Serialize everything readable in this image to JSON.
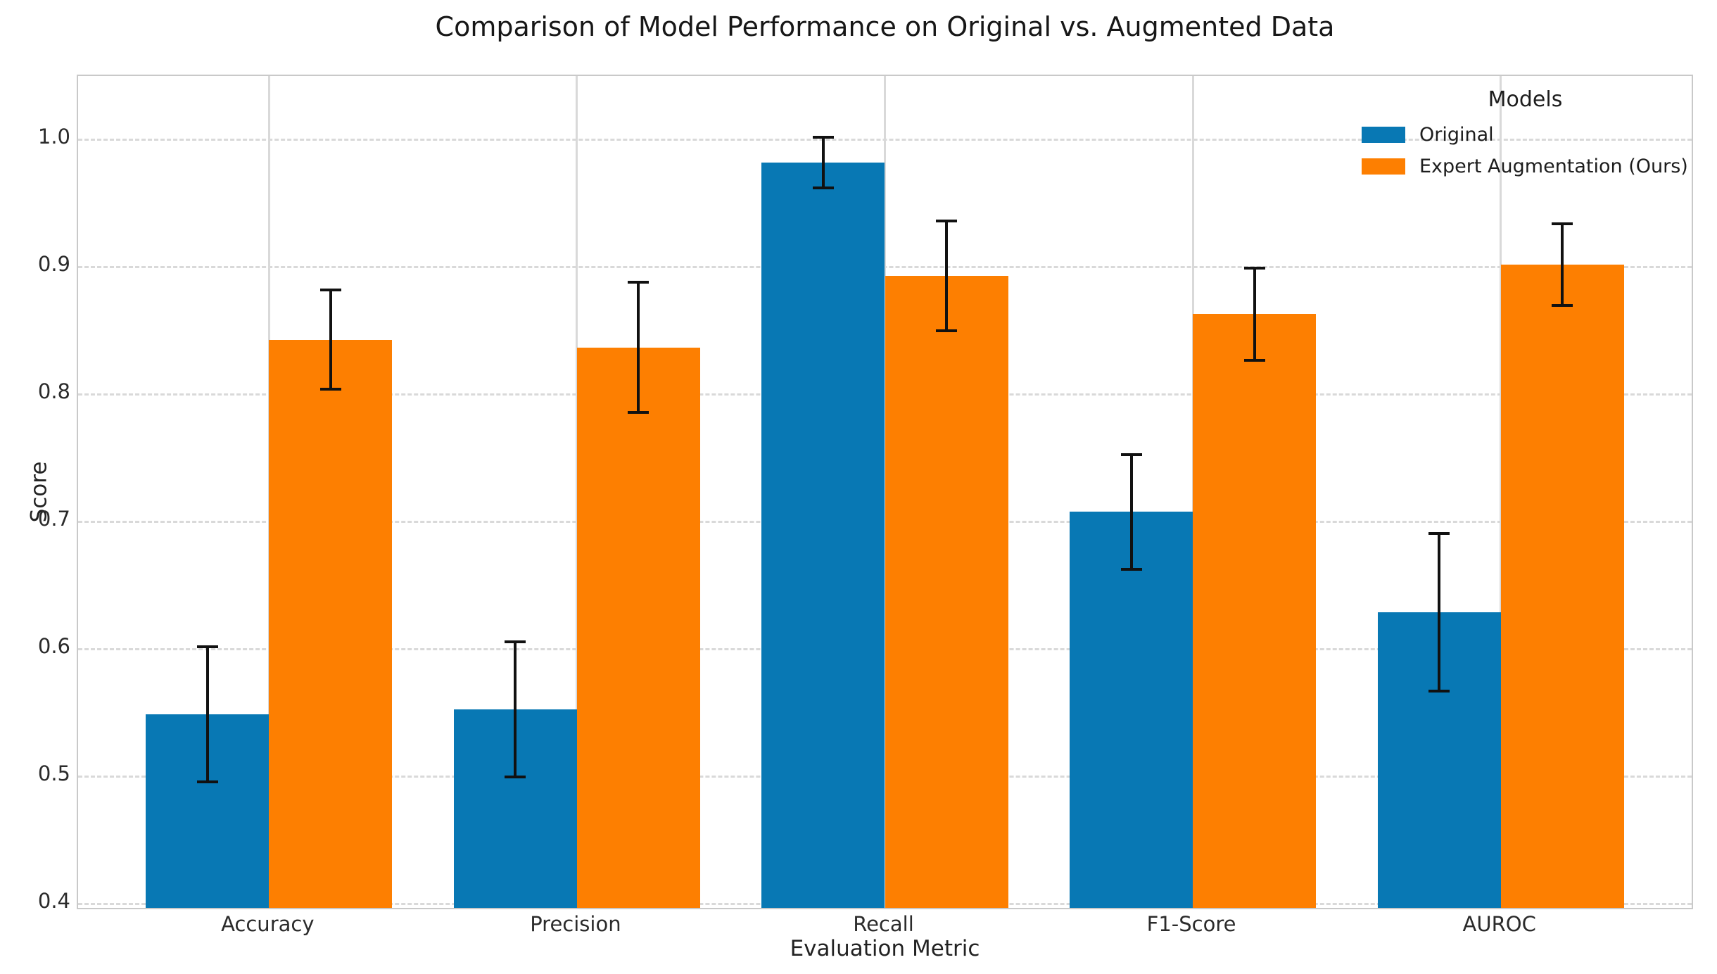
{
  "figure": {
    "title": "Comparison of Model Performance on Original vs. Augmented Data"
  },
  "axes": {
    "ylabel": "Score",
    "xlabel": "Evaluation Metric"
  },
  "legend": {
    "title": "Models",
    "entries": [
      {
        "label": "Original",
        "color": "#0878b4"
      },
      {
        "label": "Expert Augmentation (Ours)",
        "color": "#fd7f01"
      }
    ]
  },
  "chart_data": {
    "type": "bar",
    "title": "Comparison of Model Performance on Original vs. Augmented Data",
    "xlabel": "Evaluation Metric",
    "ylabel": "Score",
    "categories": [
      "Accuracy",
      "Precision",
      "Recall",
      "F1-Score",
      "AUROC"
    ],
    "series": [
      {
        "name": "Original",
        "color": "#0878b4",
        "values": [
          0.549,
          0.553,
          0.982,
          0.708,
          0.629
        ],
        "errors": [
          0.053,
          0.053,
          0.02,
          0.045,
          0.062
        ]
      },
      {
        "name": "Expert Augmentation (Ours)",
        "color": "#fd7f01",
        "values": [
          0.843,
          0.837,
          0.893,
          0.863,
          0.902
        ],
        "errors": [
          0.039,
          0.051,
          0.043,
          0.036,
          0.032
        ]
      }
    ],
    "ylim": [
      0.4,
      1.05
    ],
    "yticks": [
      0.4,
      0.5,
      0.6,
      0.7,
      0.8,
      0.9,
      1.0
    ],
    "ytick_labels": [
      "0.4",
      "0.5",
      "0.6",
      "0.7",
      "0.8",
      "0.9",
      "1.0"
    ],
    "grid": {
      "horizontal": "dashed",
      "vertical_category_lines": true
    },
    "legend_position": "upper right",
    "error_bar_color": "#111111",
    "gridline_color": "#d9d9d9",
    "background": "#ffffff"
  }
}
